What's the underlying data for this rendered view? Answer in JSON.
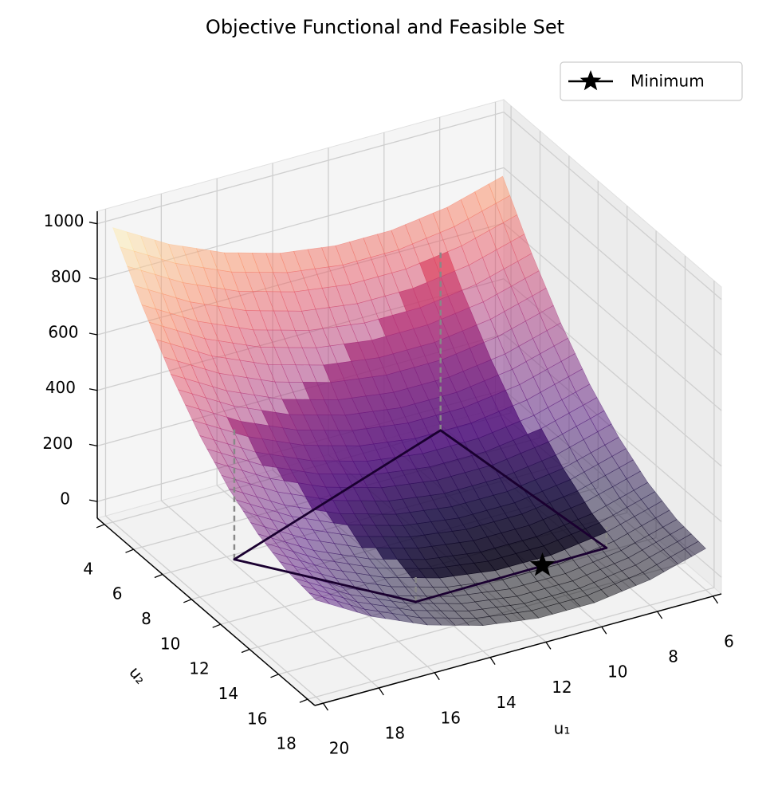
{
  "chart_data": {
    "type": "surface3d",
    "title": "Objective Functional and Feasible Set",
    "xlabel": "u₁",
    "ylabel": "u₂",
    "xlim": [
      5.7,
      20.3
    ],
    "ylim": [
      3.5,
      18.5
    ],
    "zlim": [
      -60,
      1045
    ],
    "xticks": [
      6,
      8,
      10,
      12,
      14,
      16,
      18,
      20
    ],
    "yticks": [
      4,
      6,
      8,
      10,
      12,
      14,
      16,
      18
    ],
    "zticks": [
      0,
      200,
      400,
      600,
      800,
      1000
    ],
    "grid": true,
    "colormap": "magma",
    "legend": "upper right",
    "surface": {
      "x": [
        6,
        8,
        10,
        12,
        14,
        16,
        18,
        20
      ],
      "y": [
        4,
        6,
        8,
        10,
        12,
        14,
        16,
        18
      ],
      "z": [
        [
          800,
          743,
          715,
          715,
          743,
          800,
          886,
          1000
        ],
        [
          612,
          555,
          527,
          527,
          555,
          612,
          698,
          812
        ],
        [
          452,
          395,
          367,
          367,
          395,
          452,
          538,
          652
        ],
        [
          321,
          264,
          236,
          236,
          264,
          321,
          407,
          521
        ],
        [
          220,
          163,
          135,
          135,
          163,
          220,
          306,
          420
        ],
        [
          147,
          90,
          62,
          62,
          90,
          147,
          233,
          347
        ],
        [
          104,
          47,
          19,
          19,
          47,
          104,
          190,
          304
        ],
        [
          89,
          32,
          4,
          4,
          32,
          89,
          175,
          289
        ]
      ]
    },
    "feasible_set": {
      "color": "#1a0030",
      "x": [
        18.4,
        14.8,
        7.9,
        8.7
      ],
      "y": [
        9.3,
        14.9,
        14.8,
        4.9
      ],
      "z": [
        0,
        0,
        0,
        0
      ]
    },
    "series": [
      {
        "name": "Minimum",
        "color": "#000000",
        "x": [
          10.2
        ],
        "y": [
          14.8
        ],
        "z": [
          0
        ]
      }
    ]
  }
}
